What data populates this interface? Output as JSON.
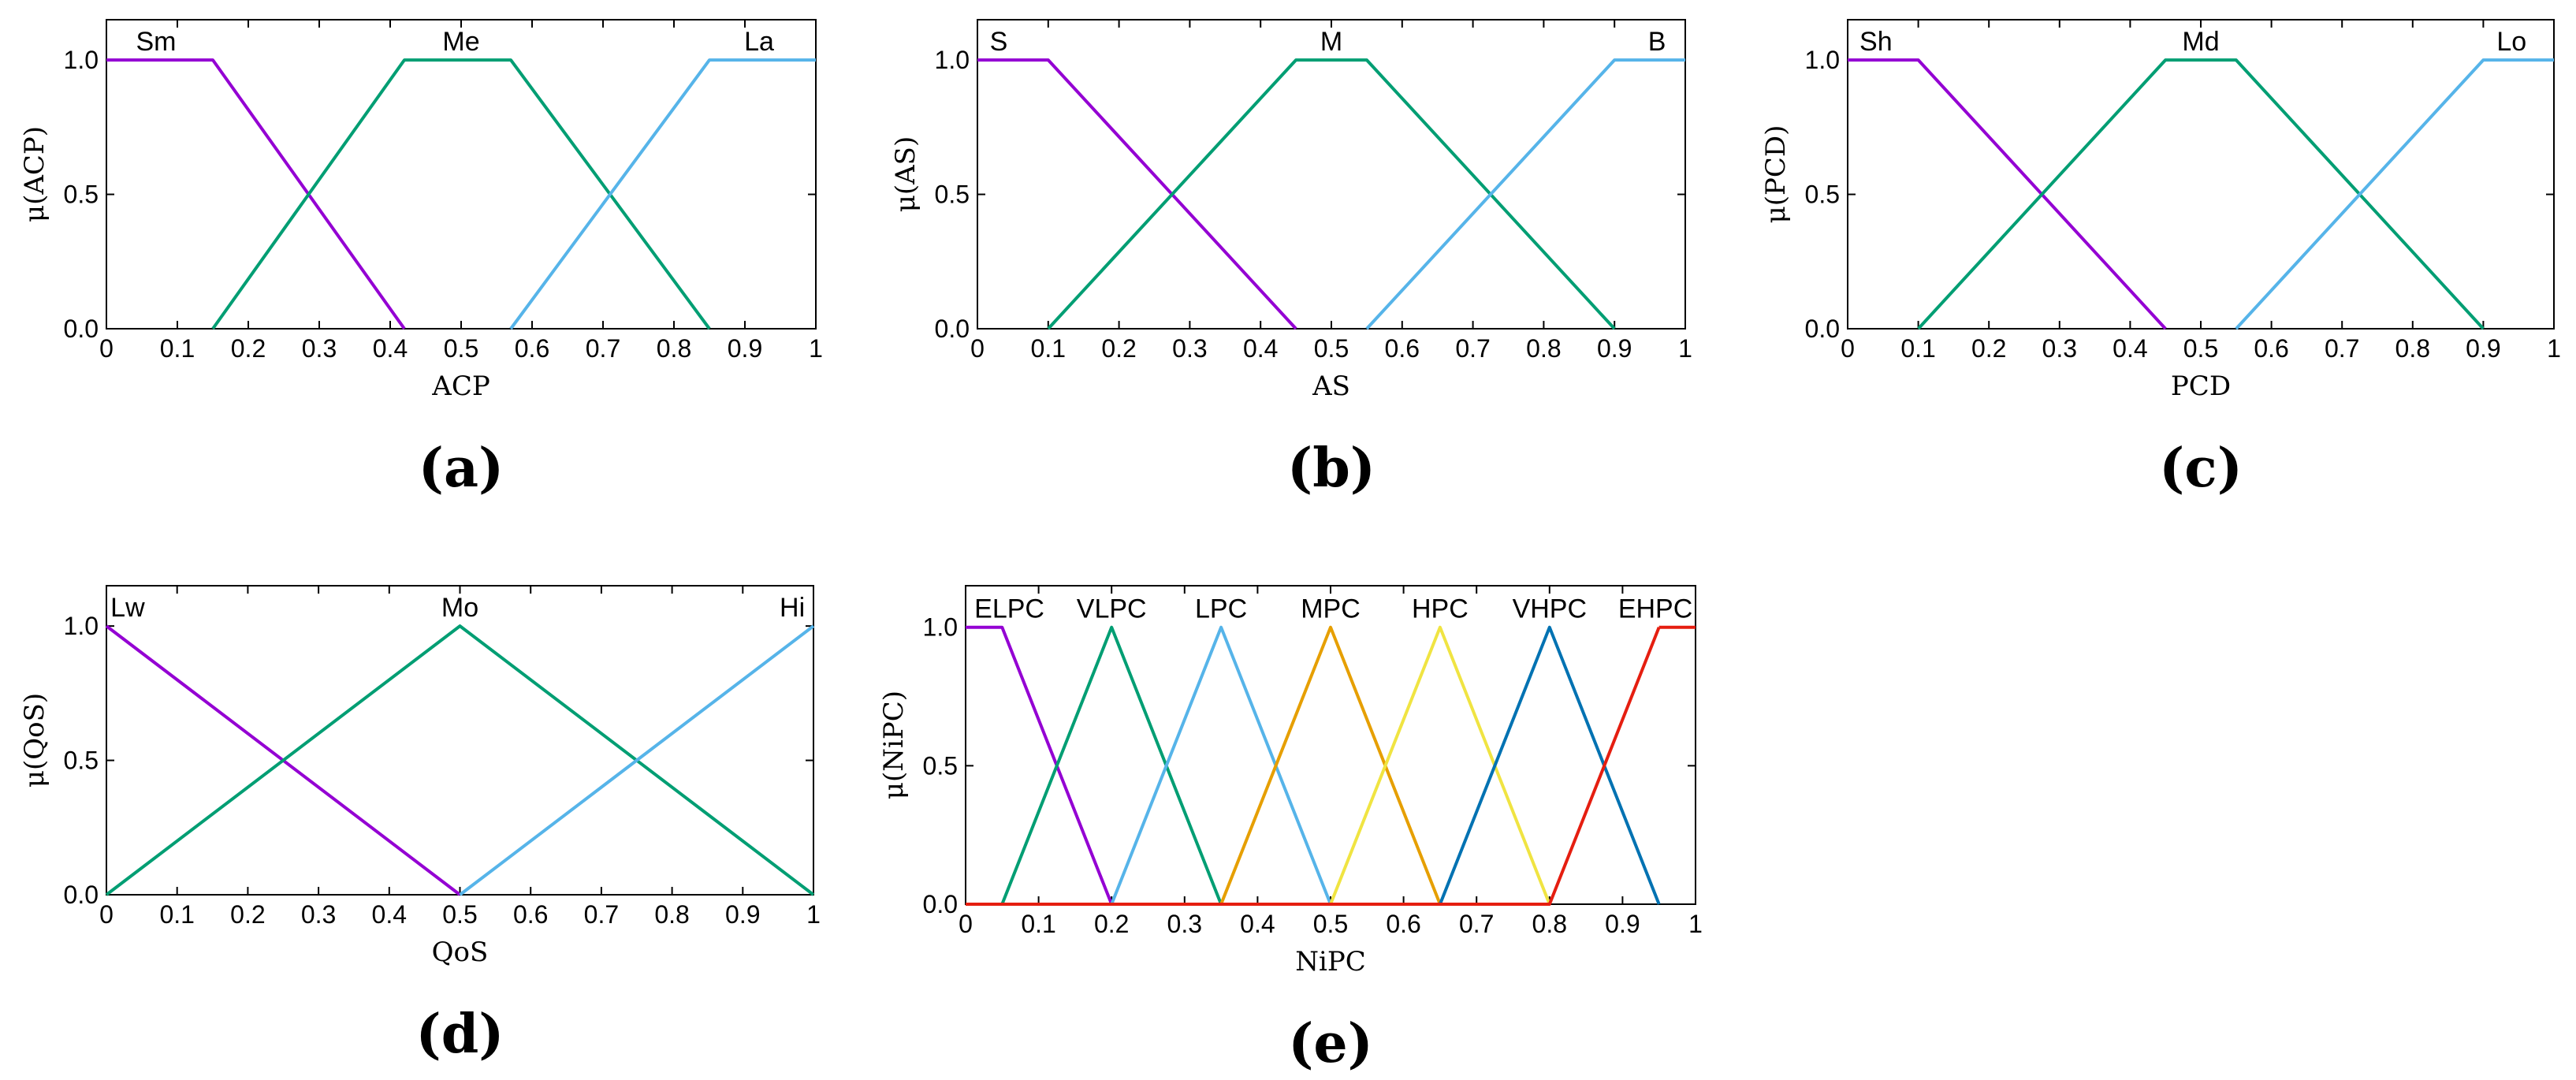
{
  "colors": {
    "purple": "#9400d3",
    "green": "#009e73",
    "lightblue": "#56b4e9",
    "orange": "#e69f00",
    "yellow": "#f0e442",
    "darkblue": "#0072b2",
    "red": "#e51e10"
  },
  "chart_data": [
    {
      "panel": "(a)",
      "type": "line",
      "xlabel": "ACP",
      "ylabel": "μ(ACP)",
      "xlim": [
        0,
        1
      ],
      "ylim": [
        0,
        1.15
      ],
      "xticks": [
        "0",
        "0.1",
        "0.2",
        "0.3",
        "0.4",
        "0.5",
        "0.6",
        "0.7",
        "0.8",
        "0.9",
        "1"
      ],
      "yticks": [
        "0.0",
        "0.5",
        "1.0"
      ],
      "grid": false,
      "series": [
        {
          "name": "Sm",
          "color": "purple",
          "label_x": 0.07,
          "x": [
            0,
            0.15,
            0.42
          ],
          "y": [
            1,
            1,
            0
          ]
        },
        {
          "name": "Me",
          "color": "green",
          "label_x": 0.5,
          "x": [
            0.15,
            0.42,
            0.57,
            0.85
          ],
          "y": [
            0,
            1,
            1,
            0
          ]
        },
        {
          "name": "La",
          "color": "lightblue",
          "label_x": 0.92,
          "x": [
            0.57,
            0.85,
            1
          ],
          "y": [
            0,
            1,
            1
          ]
        }
      ]
    },
    {
      "panel": "(b)",
      "type": "line",
      "xlabel": "AS",
      "ylabel": "μ(AS)",
      "xlim": [
        0,
        1
      ],
      "ylim": [
        0,
        1.15
      ],
      "xticks": [
        "0",
        "0.1",
        "0.2",
        "0.3",
        "0.4",
        "0.5",
        "0.6",
        "0.7",
        "0.8",
        "0.9",
        "1"
      ],
      "yticks": [
        "0.0",
        "0.5",
        "1.0"
      ],
      "grid": false,
      "series": [
        {
          "name": "S",
          "color": "purple",
          "label_x": 0.03,
          "x": [
            0,
            0.1,
            0.45
          ],
          "y": [
            1,
            1,
            0
          ]
        },
        {
          "name": "M",
          "color": "green",
          "label_x": 0.5,
          "x": [
            0.1,
            0.45,
            0.55,
            0.9
          ],
          "y": [
            0,
            1,
            1,
            0
          ]
        },
        {
          "name": "B",
          "color": "lightblue",
          "label_x": 0.96,
          "x": [
            0.55,
            0.9,
            1
          ],
          "y": [
            0,
            1,
            1
          ]
        }
      ]
    },
    {
      "panel": "(c)",
      "type": "line",
      "xlabel": "PCD",
      "ylabel": "μ(PCD)",
      "xlim": [
        0,
        1
      ],
      "ylim": [
        0,
        1.15
      ],
      "xticks": [
        "0",
        "0.1",
        "0.2",
        "0.3",
        "0.4",
        "0.5",
        "0.6",
        "0.7",
        "0.8",
        "0.9",
        "1"
      ],
      "yticks": [
        "0.0",
        "0.5",
        "1.0"
      ],
      "grid": false,
      "series": [
        {
          "name": "Sh",
          "color": "purple",
          "label_x": 0.04,
          "x": [
            0,
            0.1,
            0.45
          ],
          "y": [
            1,
            1,
            0
          ]
        },
        {
          "name": "Md",
          "color": "green",
          "label_x": 0.5,
          "x": [
            0.1,
            0.45,
            0.55,
            0.9
          ],
          "y": [
            0,
            1,
            1,
            0
          ]
        },
        {
          "name": "Lo",
          "color": "lightblue",
          "label_x": 0.94,
          "x": [
            0.55,
            0.9,
            1
          ],
          "y": [
            0,
            1,
            1
          ]
        }
      ]
    },
    {
      "panel": "(d)",
      "type": "line",
      "xlabel": "QoS",
      "ylabel": "μ(QoS)",
      "xlim": [
        0,
        1
      ],
      "ylim": [
        0,
        1.15
      ],
      "xticks": [
        "0",
        "0.1",
        "0.2",
        "0.3",
        "0.4",
        "0.5",
        "0.6",
        "0.7",
        "0.8",
        "0.9",
        "1"
      ],
      "yticks": [
        "0.0",
        "0.5",
        "1.0"
      ],
      "grid": false,
      "series": [
        {
          "name": "Lw",
          "color": "purple",
          "label_x": 0.03,
          "x": [
            0,
            0.5
          ],
          "y": [
            1,
            0
          ]
        },
        {
          "name": "Mo",
          "color": "green",
          "label_x": 0.5,
          "x": [
            0,
            0.5,
            1
          ],
          "y": [
            0,
            1,
            0
          ]
        },
        {
          "name": "Hi",
          "color": "lightblue",
          "label_x": 0.97,
          "x": [
            0.5,
            1
          ],
          "y": [
            0,
            1
          ]
        }
      ]
    },
    {
      "panel": "(e)",
      "type": "line",
      "xlabel": "NiPC",
      "ylabel": "μ(NiPC)",
      "xlim": [
        0,
        1
      ],
      "ylim": [
        0,
        1.15
      ],
      "xticks": [
        "0",
        "0.1",
        "0.2",
        "0.3",
        "0.4",
        "0.5",
        "0.6",
        "0.7",
        "0.8",
        "0.9",
        "1"
      ],
      "yticks": [
        "0.0",
        "0.5",
        "1.0"
      ],
      "grid": false,
      "series": [
        {
          "name": "ELPC",
          "color": "purple",
          "label_x": 0.06,
          "x": [
            0,
            0.05,
            0.2
          ],
          "y": [
            1,
            1,
            0
          ]
        },
        {
          "name": "VLPC",
          "color": "green",
          "label_x": 0.2,
          "x": [
            0.05,
            0.2,
            0.35
          ],
          "y": [
            0,
            1,
            0
          ]
        },
        {
          "name": "LPC",
          "color": "lightblue",
          "label_x": 0.35,
          "x": [
            0.2,
            0.35,
            0.5
          ],
          "y": [
            0,
            1,
            0
          ]
        },
        {
          "name": "MPC",
          "color": "orange",
          "label_x": 0.5,
          "x": [
            0.35,
            0.5,
            0.65
          ],
          "y": [
            0,
            1,
            0
          ]
        },
        {
          "name": "HPC",
          "color": "yellow",
          "label_x": 0.65,
          "x": [
            0.5,
            0.65,
            0.8
          ],
          "y": [
            0,
            1,
            0
          ]
        },
        {
          "name": "VHPC",
          "color": "darkblue",
          "label_x": 0.8,
          "x": [
            0.65,
            0.8,
            0.95
          ],
          "y": [
            0,
            1,
            0
          ]
        },
        {
          "name": "EHPC",
          "color": "red",
          "label_x": 0.945,
          "x": [
            0.95,
            1
          ],
          "y": [
            1,
            1
          ]
        },
        {
          "name": "",
          "color": "red",
          "x": [
            0,
            0.8,
            0.95
          ],
          "y": [
            0,
            0,
            1
          ],
          "baseline": true
        }
      ]
    }
  ]
}
